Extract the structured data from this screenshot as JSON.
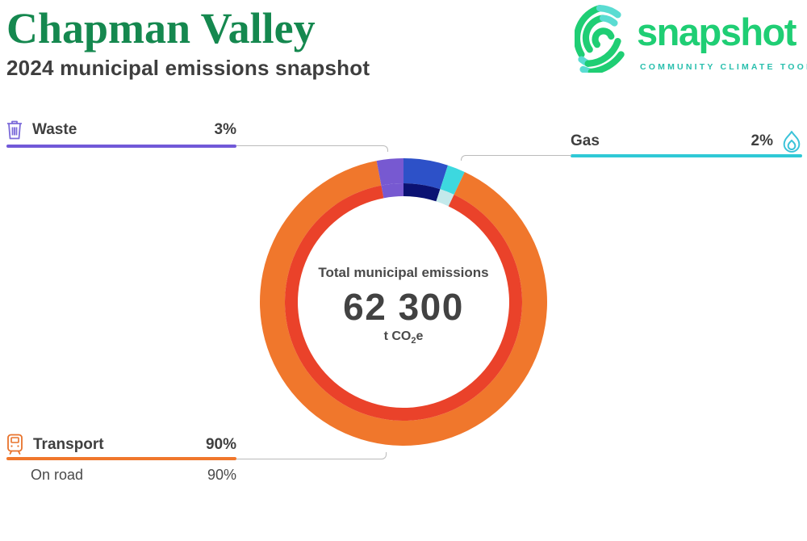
{
  "header": {
    "title": "Chapman Valley",
    "subtitle": "2024 municipal emissions snapshot"
  },
  "logo": {
    "wordmark": "snapshot",
    "tagline": "COMMUNITY CLIMATE TOOL",
    "green": "#1FCE74",
    "teal": "#28BFAD",
    "light_accent": "#5ADCD2"
  },
  "chart_data": {
    "type": "pie",
    "variant": "double-ring-donut",
    "title": "Total municipal emissions",
    "center": {
      "label": "Total municipal emissions",
      "value": "62 300",
      "unit_prefix": "t CO",
      "unit_sub": "2",
      "unit_suffix": "e"
    },
    "start_angle_deg": 0,
    "clockwise": true,
    "segments": [
      {
        "name": "unlabeled",
        "percent": 5,
        "outer_color": "#2D51C8",
        "inner_color": "#0B1273"
      },
      {
        "name": "gas",
        "percent": 2,
        "outer_color": "#3DD8DF",
        "inner_color": "#C3E9EB"
      },
      {
        "name": "transport",
        "percent": 90,
        "outer_color": "#F0772C",
        "inner_color": "#EA422A"
      },
      {
        "name": "waste",
        "percent": 3,
        "outer_color": "#7759D1",
        "inner_color": "#7759D1"
      }
    ]
  },
  "callouts": {
    "waste": {
      "label": "Waste",
      "value": "3%",
      "rule_color": "#7159D8",
      "icon": "trash-icon",
      "icon_color": "#7B6AD9"
    },
    "gas": {
      "label": "Gas",
      "value": "2%",
      "rule_color": "#2FC9D6",
      "icon": "flame-icon",
      "icon_color": "#3BC3D9"
    },
    "transport": {
      "label": "Transport",
      "value": "90%",
      "rule_color": "#F0772C",
      "icon": "train-icon",
      "icon_color": "#E8732C",
      "sub": {
        "label": "On road",
        "value": "90%"
      }
    }
  }
}
